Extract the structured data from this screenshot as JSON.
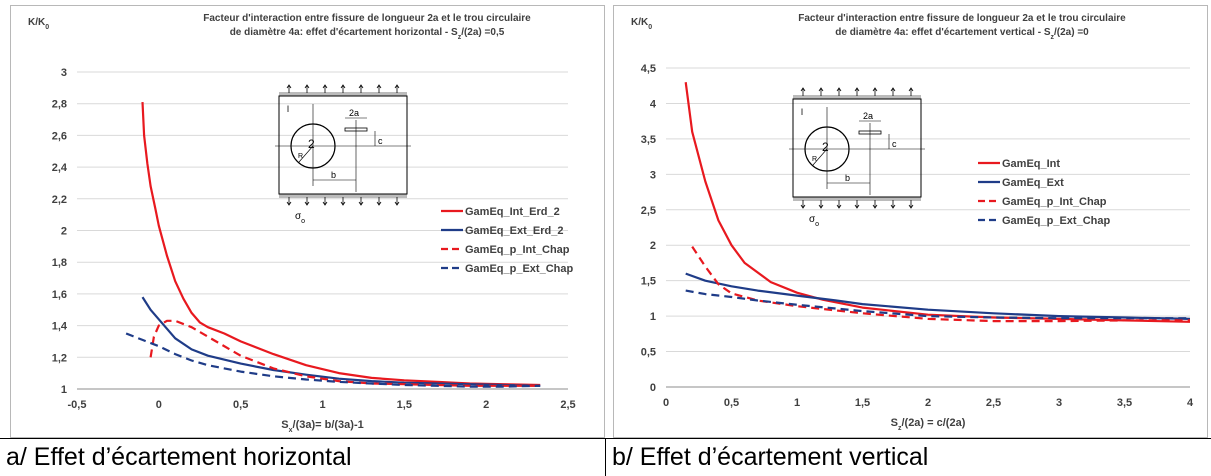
{
  "chart_data": [
    {
      "type": "line",
      "ylabel_main": "K/K",
      "ylabel_sub": "0",
      "title_line1": "Facteur d'interaction entre fissure de longueur 2a et le trou circulaire",
      "title_line2_main": "de diamètre 4a: effet d'écartement horizontal - S",
      "title_line2_sub": "z",
      "title_line2_rest": "/(2a) =0,5",
      "xlabel_main": "S",
      "xlabel_sub": "x",
      "xlabel_rest": "/(3a)= b/(3a)-1",
      "xlim": [
        -0.5,
        2.5
      ],
      "ylim": [
        1,
        3
      ],
      "x_ticks": [
        "-0,5",
        "0",
        "0,5",
        "1",
        "1,5",
        "2",
        "2,5"
      ],
      "y_ticks": [
        "1",
        "1,2",
        "1,4",
        "1,6",
        "1,8",
        "2",
        "2,2",
        "2,4",
        "2,6",
        "2,8",
        "3"
      ],
      "grid": "horizontal",
      "legend_position": "right",
      "series": [
        {
          "name": "GamEq_Int_Erd_2",
          "color": "#e8191f",
          "dash": false,
          "x": [
            -0.1,
            -0.09,
            -0.07,
            -0.05,
            -0.02,
            0,
            0.05,
            0.1,
            0.15,
            0.2,
            0.25,
            0.3,
            0.4,
            0.5,
            0.7,
            0.9,
            1.1,
            1.3,
            1.5,
            1.7,
            1.9,
            2.1,
            2.33
          ],
          "y": [
            2.81,
            2.6,
            2.42,
            2.28,
            2.13,
            2.03,
            1.84,
            1.68,
            1.57,
            1.48,
            1.42,
            1.39,
            1.35,
            1.3,
            1.22,
            1.15,
            1.1,
            1.07,
            1.055,
            1.045,
            1.035,
            1.03,
            1.025
          ]
        },
        {
          "name": "GamEq_Ext_Erd_2",
          "color": "#1f3c88",
          "dash": false,
          "x": [
            -0.1,
            -0.05,
            0,
            0.05,
            0.1,
            0.2,
            0.3,
            0.5,
            0.7,
            0.9,
            1.1,
            1.3,
            1.5,
            1.7,
            1.9,
            2.1,
            2.33
          ],
          "y": [
            1.58,
            1.5,
            1.44,
            1.38,
            1.32,
            1.25,
            1.21,
            1.16,
            1.12,
            1.09,
            1.065,
            1.05,
            1.04,
            1.035,
            1.03,
            1.025,
            1.02
          ]
        },
        {
          "name": "GamEq_p_Int_Chap",
          "color": "#e8191f",
          "dash": true,
          "x": [
            -0.05,
            -0.03,
            0,
            0.05,
            0.1,
            0.2,
            0.3,
            0.5,
            0.7,
            0.9,
            1.1,
            1.3,
            1.5,
            1.7,
            1.9,
            2.1,
            2.33
          ],
          "y": [
            1.2,
            1.33,
            1.4,
            1.43,
            1.43,
            1.39,
            1.33,
            1.21,
            1.13,
            1.08,
            1.05,
            1.035,
            1.03,
            1.025,
            1.02,
            1.02,
            1.02
          ]
        },
        {
          "name": "GamEq_p_Ext_Chap",
          "color": "#1f3c88",
          "dash": true,
          "x": [
            -0.2,
            -0.1,
            0,
            0.1,
            0.2,
            0.3,
            0.5,
            0.7,
            0.9,
            1.1,
            1.3,
            1.5,
            1.7,
            1.9,
            2.1,
            2.33
          ],
          "y": [
            1.35,
            1.31,
            1.27,
            1.22,
            1.18,
            1.15,
            1.11,
            1.08,
            1.06,
            1.045,
            1.035,
            1.025,
            1.02,
            1.015,
            1.015,
            1.02
          ]
        }
      ]
    },
    {
      "type": "line",
      "ylabel_main": "K/K",
      "ylabel_sub": "0",
      "title_line1": "Facteur d'interaction entre fissure de longueur 2a et le trou circulaire",
      "title_line2_main": "de diamètre 4a: effet d'écartement vertical - S",
      "title_line2_sub": "z",
      "title_line2_rest": "/(2a) =0",
      "xlabel_main": "S",
      "xlabel_sub": "z",
      "xlabel_rest": "/(2a) = c/(2a)",
      "xlim": [
        0,
        4
      ],
      "ylim": [
        0,
        4.5
      ],
      "x_ticks": [
        "0",
        "0,5",
        "1",
        "1,5",
        "2",
        "2,5",
        "3",
        "3,5",
        "4"
      ],
      "y_ticks": [
        "0",
        "0,5",
        "1",
        "1,5",
        "2",
        "2,5",
        "3",
        "3,5",
        "4",
        "4,5"
      ],
      "grid": "horizontal",
      "legend_position": "right",
      "series": [
        {
          "name": "GamEq_Int",
          "color": "#e8191f",
          "dash": false,
          "x": [
            0.15,
            0.2,
            0.3,
            0.4,
            0.5,
            0.6,
            0.8,
            1,
            1.2,
            1.5,
            2,
            2.5,
            3,
            3.5,
            4
          ],
          "y": [
            4.3,
            3.6,
            2.9,
            2.35,
            2.0,
            1.75,
            1.48,
            1.33,
            1.23,
            1.12,
            1.02,
            0.98,
            0.96,
            0.94,
            0.92
          ]
        },
        {
          "name": "GamEq_Ext",
          "color": "#1f3c88",
          "dash": false,
          "x": [
            0.15,
            0.3,
            0.5,
            0.7,
            1,
            1.3,
            1.5,
            2,
            2.5,
            3,
            3.5,
            4
          ],
          "y": [
            1.6,
            1.5,
            1.42,
            1.36,
            1.29,
            1.22,
            1.17,
            1.09,
            1.04,
            1.0,
            0.98,
            0.96
          ]
        },
        {
          "name": "GamEq_p_Int_Chap",
          "color": "#e8191f",
          "dash": true,
          "x": [
            0.2,
            0.3,
            0.4,
            0.5,
            0.7,
            1,
            1.5,
            2,
            2.5,
            3,
            3.5,
            4
          ],
          "y": [
            1.98,
            1.7,
            1.45,
            1.32,
            1.22,
            1.14,
            1.04,
            0.96,
            0.93,
            0.93,
            0.94,
            0.94
          ]
        },
        {
          "name": "GamEq_p_Ext_Chap",
          "color": "#1f3c88",
          "dash": true,
          "x": [
            0.15,
            0.3,
            0.5,
            0.7,
            1,
            1.5,
            2,
            2.5,
            3,
            3.5,
            4
          ],
          "y": [
            1.36,
            1.31,
            1.27,
            1.22,
            1.16,
            1.07,
            1.0,
            0.98,
            0.97,
            0.97,
            0.97
          ]
        }
      ]
    }
  ],
  "inset": {
    "dim_2a": "2a",
    "dim_c": "c",
    "dim_b": "b",
    "hole_label": "2",
    "radius_label": "R",
    "side_label": "l",
    "stress_main": "σ",
    "stress_sub": "o"
  },
  "captions": {
    "a": "a/ Effet d’écartement horizontal",
    "b": "b/ Effet d’écartement vertical"
  }
}
